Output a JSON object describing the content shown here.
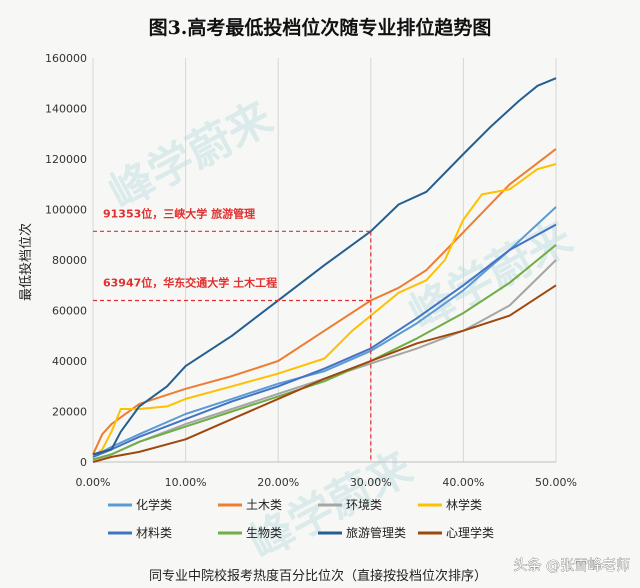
{
  "chart_data": {
    "type": "line",
    "title": "图3.高考最低投档位次随专业排位趋势图",
    "xlabel": "同专业中院校报考热度百分比位次（直接按投档位次排序）",
    "ylabel": "最低投档位次",
    "xlim": [
      0,
      0.5
    ],
    "ylim": [
      0,
      160000
    ],
    "x_ticks": [
      0,
      0.1,
      0.2,
      0.3,
      0.4,
      0.5
    ],
    "x_tick_labels": [
      "0.00%",
      "10.00%",
      "20.00%",
      "30.00%",
      "40.00%",
      "50.00%"
    ],
    "y_ticks": [
      0,
      20000,
      40000,
      60000,
      80000,
      100000,
      120000,
      140000,
      160000
    ],
    "y_tick_labels": [
      "0",
      "20000",
      "40000",
      "60000",
      "80000",
      "100000",
      "120000",
      "140000",
      "160000"
    ],
    "grid": "vertical",
    "legend_position": "bottom",
    "series": [
      {
        "name": "化学类",
        "color": "#5b9bd5",
        "x": [
          0,
          0.02,
          0.05,
          0.1,
          0.15,
          0.2,
          0.25,
          0.3,
          0.35,
          0.4,
          0.45,
          0.5
        ],
        "y": [
          2000,
          6000,
          11000,
          19000,
          25000,
          31000,
          36000,
          44000,
          55000,
          68000,
          84000,
          101000
        ]
      },
      {
        "name": "土木类",
        "color": "#ed7d31",
        "x": [
          0,
          0.01,
          0.02,
          0.05,
          0.1,
          0.15,
          0.2,
          0.25,
          0.3,
          0.33,
          0.36,
          0.4,
          0.45,
          0.5
        ],
        "y": [
          3000,
          11000,
          15000,
          23000,
          29000,
          34000,
          40000,
          52000,
          63947,
          69000,
          76000,
          91000,
          110000,
          124000
        ]
      },
      {
        "name": "环境类",
        "color": "#a5a5a5",
        "x": [
          0,
          0.02,
          0.05,
          0.1,
          0.15,
          0.2,
          0.25,
          0.3,
          0.35,
          0.4,
          0.45,
          0.5
        ],
        "y": [
          1000,
          3000,
          8000,
          15000,
          21000,
          27000,
          33000,
          39000,
          45000,
          52000,
          62000,
          80000
        ]
      },
      {
        "name": "林学类",
        "color": "#ffc000",
        "x": [
          0,
          0.01,
          0.02,
          0.03,
          0.05,
          0.08,
          0.1,
          0.15,
          0.2,
          0.25,
          0.28,
          0.3,
          0.33,
          0.36,
          0.38,
          0.4,
          0.42,
          0.45,
          0.48,
          0.5
        ],
        "y": [
          2000,
          5000,
          12000,
          21000,
          21000,
          22000,
          25000,
          30000,
          35000,
          41000,
          52000,
          58000,
          67000,
          72000,
          80000,
          96000,
          106000,
          108000,
          116000,
          118000
        ]
      },
      {
        "name": "材料类",
        "color": "#4472c4",
        "x": [
          0,
          0.02,
          0.05,
          0.1,
          0.15,
          0.2,
          0.25,
          0.3,
          0.35,
          0.4,
          0.45,
          0.5
        ],
        "y": [
          2000,
          5000,
          10000,
          17000,
          24000,
          30000,
          37000,
          45000,
          57000,
          70000,
          84000,
          94000
        ]
      },
      {
        "name": "生物类",
        "color": "#70ad47",
        "x": [
          0,
          0.02,
          0.05,
          0.1,
          0.15,
          0.2,
          0.25,
          0.3,
          0.35,
          0.4,
          0.45,
          0.5
        ],
        "y": [
          1000,
          3000,
          8000,
          14000,
          20000,
          26000,
          32000,
          40000,
          49000,
          59000,
          71000,
          86000
        ]
      },
      {
        "name": "旅游管理类",
        "color": "#255e91",
        "x": [
          0,
          0.02,
          0.03,
          0.05,
          0.08,
          0.1,
          0.15,
          0.2,
          0.25,
          0.3,
          0.33,
          0.36,
          0.4,
          0.43,
          0.46,
          0.48,
          0.5
        ],
        "y": [
          3000,
          5000,
          12000,
          22000,
          30000,
          38000,
          50000,
          64000,
          78000,
          91353,
          102000,
          107000,
          122000,
          133000,
          143000,
          149000,
          152000
        ]
      },
      {
        "name": "心理学类",
        "color": "#9e480e",
        "x": [
          0,
          0.02,
          0.05,
          0.1,
          0.15,
          0.2,
          0.25,
          0.3,
          0.35,
          0.4,
          0.45,
          0.5
        ],
        "y": [
          0,
          2000,
          4000,
          9000,
          17000,
          25000,
          33000,
          40000,
          47000,
          52000,
          58000,
          70000
        ]
      }
    ],
    "annotations": [
      {
        "text": "91353位，三峡大学 旅游管理",
        "x": 0.3,
        "y": 91353
      },
      {
        "text": "63947位，华东交通大学 土木工程",
        "x": 0.3,
        "y": 63947
      }
    ]
  },
  "watermark": {
    "text": "峰学蔚来"
  },
  "credit": {
    "text": "头条 @张雪峰老师"
  }
}
